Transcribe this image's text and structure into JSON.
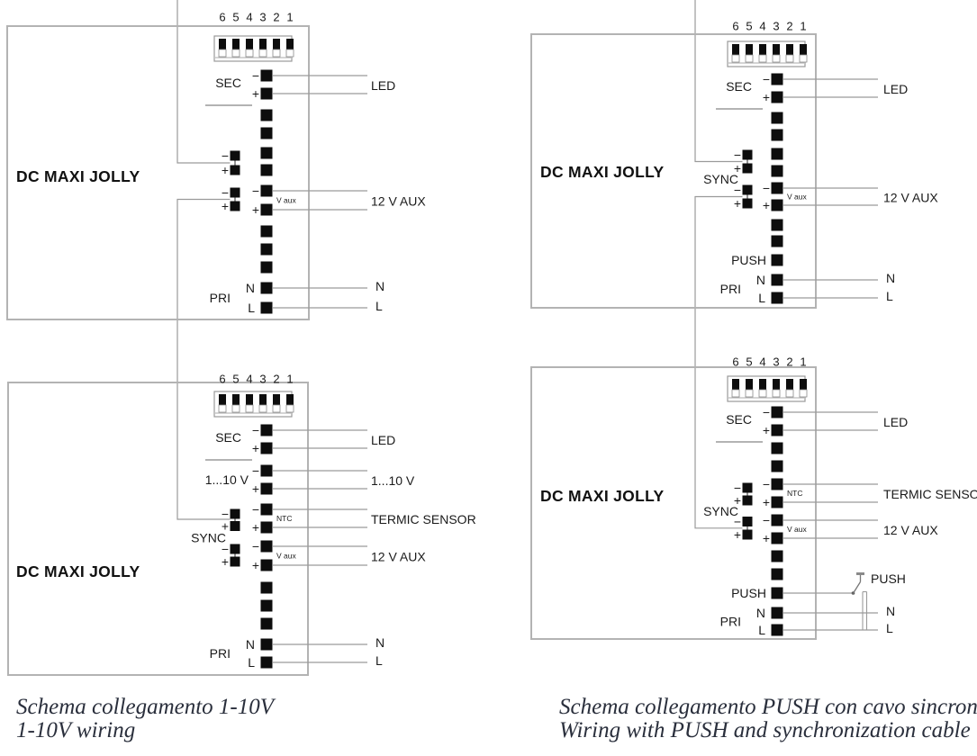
{
  "captions": {
    "left": {
      "line1": "Schema collegamento 1-10V",
      "line2": "1-10V wiring"
    },
    "right": {
      "line1": "Schema collegamento PUSH con cavo sincroniz",
      "line2": "Wiring with PUSH and synchronization cable"
    }
  },
  "labels": {
    "device": "DC MAXI JOLLY",
    "sec": "SEC",
    "pri": "PRI",
    "sync": "SYNC",
    "push": "PUSH",
    "ntc": "NTC",
    "vaux": "V aux",
    "dim_label": "1...10 V",
    "minus": "−",
    "plus": "+",
    "n": "N",
    "l": "L"
  },
  "connections": {
    "led": "LED",
    "aux": "12 V AUX",
    "dim": "1...10 V",
    "termic": "TERMIC SENSOR",
    "n": "N",
    "l": "L",
    "push_button": "PUSH"
  },
  "dip": {
    "numbers": [
      "6",
      "5",
      "4",
      "3",
      "2",
      "1"
    ]
  },
  "diagrams": [
    {
      "position": "top-left",
      "device": "DC MAXI JOLLY",
      "dip_numbers": "6 5 4 3 2 1",
      "terminal_groups": [
        "SEC − +",
        "− + sync pair",
        "− + sync pair",
        "V aux − +",
        "PRI N L"
      ],
      "right_connections": [
        "LED",
        "12 V AUX",
        "N",
        "L"
      ]
    },
    {
      "position": "top-right",
      "device": "DC MAXI JOLLY",
      "dip_numbers": "6 5 4 3 2 1",
      "terminal_groups": [
        "SEC − +",
        "SYNC − + / − +",
        "V aux − +",
        "PUSH",
        "PRI N L"
      ],
      "right_connections": [
        "LED",
        "12 V AUX",
        "N",
        "L"
      ]
    },
    {
      "position": "bottom-left",
      "device": "DC MAXI JOLLY",
      "dip_numbers": "6 5 4 3 2 1",
      "terminal_groups": [
        "SEC − +",
        "1...10 V − +",
        "NTC − +",
        "SYNC − + / − +",
        "V aux − +",
        "PRI N L"
      ],
      "right_connections": [
        "LED",
        "1...10 V",
        "TERMIC SENSOR",
        "12 V AUX",
        "N",
        "L"
      ]
    },
    {
      "position": "bottom-right",
      "device": "DC MAXI JOLLY",
      "dip_numbers": "6 5 4 3 2 1",
      "terminal_groups": [
        "SEC − +",
        "NTC − +",
        "SYNC − + / − +",
        "V aux − +",
        "PUSH",
        "PRI N L"
      ],
      "right_connections": [
        "LED",
        "TERMIC SENSOR",
        "12 V AUX",
        "PUSH",
        "N",
        "L"
      ]
    }
  ],
  "colors": {
    "wire": "#9a9a9a",
    "box_border": "#b3b3b3",
    "terminal": "#0d0d0d",
    "text": "#1a1a1a",
    "caption": "#2a2f3c"
  }
}
